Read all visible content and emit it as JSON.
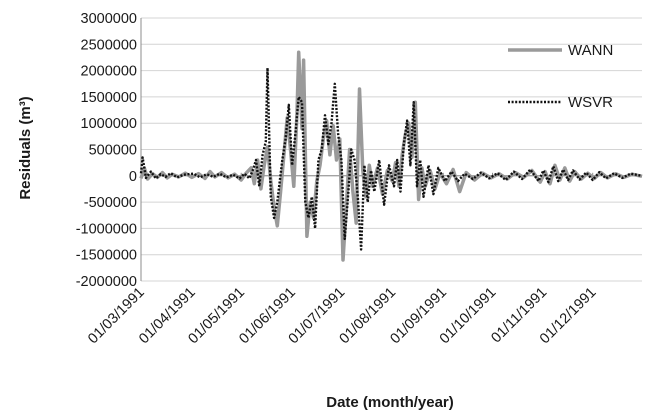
{
  "chart_data": {
    "type": "line",
    "xlabel": "Date (month/year)",
    "ylabel": "Residuals (m³)",
    "ylim": [
      -2000000,
      3000000
    ],
    "yticks": [
      -2000000,
      -1500000,
      -1000000,
      -500000,
      0,
      500000,
      1000000,
      1500000,
      2000000,
      2500000,
      3000000
    ],
    "ytick_labels": [
      "-2000000",
      "-1500000",
      "-1000000",
      "-500000",
      "0",
      "500000",
      "1000000",
      "1500000",
      "2000000",
      "2500000",
      "3000000"
    ],
    "x_range": [
      "1991-03-01",
      "1991-12-31"
    ],
    "xticks": [
      "1991-03-01",
      "1991-04-01",
      "1991-05-01",
      "1991-06-01",
      "1991-07-01",
      "1991-08-01",
      "1991-09-01",
      "1991-10-01",
      "1991-11-01",
      "1991-12-01"
    ],
    "xtick_labels": [
      "01/03/1991",
      "01/04/1991",
      "01/05/1991",
      "01/06/1991",
      "01/07/1991",
      "01/08/1991",
      "01/09/1991",
      "01/10/1991",
      "01/11/1991",
      "01/12/1991"
    ],
    "grid": "horizontal",
    "legend_position": "top-right",
    "series": [
      {
        "name": "WANN",
        "color": "#9a9a9a",
        "style": "solid",
        "points": [
          [
            "1991-03-01",
            -50000
          ],
          [
            "1991-03-03",
            150000
          ],
          [
            "1991-03-05",
            -60000
          ],
          [
            "1991-03-08",
            40000
          ],
          [
            "1991-03-11",
            -30000
          ],
          [
            "1991-03-14",
            60000
          ],
          [
            "1991-03-17",
            -40000
          ],
          [
            "1991-03-20",
            30000
          ],
          [
            "1991-03-24",
            -20000
          ],
          [
            "1991-03-28",
            50000
          ],
          [
            "1991-04-01",
            -30000
          ],
          [
            "1991-04-05",
            40000
          ],
          [
            "1991-04-09",
            -50000
          ],
          [
            "1991-04-12",
            80000
          ],
          [
            "1991-04-15",
            -20000
          ],
          [
            "1991-04-19",
            60000
          ],
          [
            "1991-04-23",
            -40000
          ],
          [
            "1991-04-27",
            30000
          ],
          [
            "1991-05-01",
            -80000
          ],
          [
            "1991-05-04",
            50000
          ],
          [
            "1991-05-07",
            150000
          ],
          [
            "1991-05-09",
            -150000
          ],
          [
            "1991-05-11",
            300000
          ],
          [
            "1991-05-13",
            -250000
          ],
          [
            "1991-05-15",
            200000
          ],
          [
            "1991-05-17",
            550000
          ],
          [
            "1991-05-19",
            -100000
          ],
          [
            "1991-05-21",
            -600000
          ],
          [
            "1991-05-23",
            -950000
          ],
          [
            "1991-05-25",
            -300000
          ],
          [
            "1991-05-27",
            400000
          ],
          [
            "1991-05-29",
            1100000
          ],
          [
            "1991-05-31",
            500000
          ],
          [
            "1991-06-02",
            -200000
          ],
          [
            "1991-06-04",
            1200000
          ],
          [
            "1991-06-05",
            2350000
          ],
          [
            "1991-06-07",
            900000
          ],
          [
            "1991-06-08",
            2200000
          ],
          [
            "1991-06-10",
            -1150000
          ],
          [
            "1991-06-12",
            -500000
          ],
          [
            "1991-06-14",
            -800000
          ],
          [
            "1991-06-16",
            -100000
          ],
          [
            "1991-06-18",
            200000
          ],
          [
            "1991-06-20",
            700000
          ],
          [
            "1991-06-22",
            1050000
          ],
          [
            "1991-06-24",
            400000
          ],
          [
            "1991-06-26",
            950000
          ],
          [
            "1991-06-28",
            300000
          ],
          [
            "1991-06-30",
            700000
          ],
          [
            "1991-07-02",
            -1600000
          ],
          [
            "1991-07-04",
            -600000
          ],
          [
            "1991-07-06",
            500000
          ],
          [
            "1991-07-08",
            -300000
          ],
          [
            "1991-07-10",
            -900000
          ],
          [
            "1991-07-12",
            1650000
          ],
          [
            "1991-07-14",
            100000
          ],
          [
            "1991-07-16",
            -400000
          ],
          [
            "1991-07-18",
            200000
          ],
          [
            "1991-07-20",
            -200000
          ],
          [
            "1991-07-23",
            150000
          ],
          [
            "1991-07-26",
            -350000
          ],
          [
            "1991-07-29",
            100000
          ],
          [
            "1991-08-01",
            -100000
          ],
          [
            "1991-08-03",
            250000
          ],
          [
            "1991-08-05",
            -200000
          ],
          [
            "1991-08-07",
            400000
          ],
          [
            "1991-08-09",
            800000
          ],
          [
            "1991-08-11",
            1000000
          ],
          [
            "1991-08-13",
            350000
          ],
          [
            "1991-08-15",
            1400000
          ],
          [
            "1991-08-17",
            -450000
          ],
          [
            "1991-08-19",
            150000
          ],
          [
            "1991-08-21",
            -200000
          ],
          [
            "1991-08-24",
            100000
          ],
          [
            "1991-08-27",
            -250000
          ],
          [
            "1991-08-30",
            50000
          ],
          [
            "1991-09-03",
            -150000
          ],
          [
            "1991-09-07",
            120000
          ],
          [
            "1991-09-11",
            -300000
          ],
          [
            "1991-09-15",
            60000
          ],
          [
            "1991-09-20",
            -80000
          ],
          [
            "1991-09-25",
            50000
          ],
          [
            "1991-09-30",
            -40000
          ],
          [
            "1991-10-05",
            40000
          ],
          [
            "1991-10-10",
            -60000
          ],
          [
            "1991-10-15",
            60000
          ],
          [
            "1991-10-20",
            -30000
          ],
          [
            "1991-10-25",
            100000
          ],
          [
            "1991-10-30",
            -120000
          ],
          [
            "1991-11-02",
            80000
          ],
          [
            "1991-11-05",
            -150000
          ],
          [
            "1991-11-08",
            200000
          ],
          [
            "1991-11-11",
            -80000
          ],
          [
            "1991-11-14",
            150000
          ],
          [
            "1991-11-17",
            -100000
          ],
          [
            "1991-11-20",
            80000
          ],
          [
            "1991-11-24",
            -60000
          ],
          [
            "1991-11-28",
            50000
          ],
          [
            "1991-12-02",
            -50000
          ],
          [
            "1991-12-06",
            60000
          ],
          [
            "1991-12-10",
            -40000
          ],
          [
            "1991-12-15",
            40000
          ],
          [
            "1991-12-20",
            -30000
          ],
          [
            "1991-12-25",
            30000
          ],
          [
            "1991-12-31",
            -10000
          ]
        ]
      },
      {
        "name": "WSVR",
        "color": "#111111",
        "style": "dotted",
        "points": [
          [
            "1991-03-01",
            50000
          ],
          [
            "1991-03-02",
            350000
          ],
          [
            "1991-03-04",
            -40000
          ],
          [
            "1991-03-07",
            80000
          ],
          [
            "1991-03-10",
            -50000
          ],
          [
            "1991-03-13",
            30000
          ],
          [
            "1991-03-16",
            -20000
          ],
          [
            "1991-03-19",
            50000
          ],
          [
            "1991-03-23",
            -30000
          ],
          [
            "1991-03-27",
            20000
          ],
          [
            "1991-04-02",
            40000
          ],
          [
            "1991-04-06",
            -30000
          ],
          [
            "1991-04-10",
            30000
          ],
          [
            "1991-04-14",
            -20000
          ],
          [
            "1991-04-18",
            40000
          ],
          [
            "1991-04-22",
            -30000
          ],
          [
            "1991-04-26",
            20000
          ],
          [
            "1991-04-30",
            -50000
          ],
          [
            "1991-05-03",
            40000
          ],
          [
            "1991-05-06",
            -50000
          ],
          [
            "1991-05-08",
            100000
          ],
          [
            "1991-05-10",
            300000
          ],
          [
            "1991-05-12",
            -200000
          ],
          [
            "1991-05-14",
            400000
          ],
          [
            "1991-05-16",
            650000
          ],
          [
            "1991-05-17",
            2050000
          ],
          [
            "1991-05-19",
            -400000
          ],
          [
            "1991-05-21",
            -800000
          ],
          [
            "1991-05-23",
            -500000
          ],
          [
            "1991-05-26",
            300000
          ],
          [
            "1991-05-28",
            700000
          ],
          [
            "1991-05-30",
            1350000
          ],
          [
            "1991-06-01",
            200000
          ],
          [
            "1991-06-03",
            800000
          ],
          [
            "1991-06-05",
            1500000
          ],
          [
            "1991-06-07",
            1400000
          ],
          [
            "1991-06-09",
            -500000
          ],
          [
            "1991-06-11",
            -800000
          ],
          [
            "1991-06-13",
            -400000
          ],
          [
            "1991-06-15",
            -1000000
          ],
          [
            "1991-06-17",
            300000
          ],
          [
            "1991-06-19",
            500000
          ],
          [
            "1991-06-21",
            1150000
          ],
          [
            "1991-06-23",
            600000
          ],
          [
            "1991-06-25",
            1000000
          ],
          [
            "1991-06-27",
            1750000
          ],
          [
            "1991-06-29",
            800000
          ],
          [
            "1991-07-01",
            300000
          ],
          [
            "1991-07-03",
            -1200000
          ],
          [
            "1991-07-05",
            -400000
          ],
          [
            "1991-07-07",
            500000
          ],
          [
            "1991-07-09",
            300000
          ],
          [
            "1991-07-11",
            -400000
          ],
          [
            "1991-07-13",
            -1400000
          ],
          [
            "1991-07-15",
            200000
          ],
          [
            "1991-07-17",
            -500000
          ],
          [
            "1991-07-19",
            100000
          ],
          [
            "1991-07-21",
            -300000
          ],
          [
            "1991-07-24",
            300000
          ],
          [
            "1991-07-27",
            -550000
          ],
          [
            "1991-07-30",
            200000
          ],
          [
            "1991-08-02",
            -200000
          ],
          [
            "1991-08-04",
            300000
          ],
          [
            "1991-08-06",
            -300000
          ],
          [
            "1991-08-08",
            600000
          ],
          [
            "1991-08-10",
            1050000
          ],
          [
            "1991-08-12",
            200000
          ],
          [
            "1991-08-14",
            1400000
          ],
          [
            "1991-08-16",
            -200000
          ],
          [
            "1991-08-18",
            300000
          ],
          [
            "1991-08-20",
            -400000
          ],
          [
            "1991-08-23",
            200000
          ],
          [
            "1991-08-26",
            -350000
          ],
          [
            "1991-08-29",
            150000
          ],
          [
            "1991-09-02",
            -100000
          ],
          [
            "1991-09-06",
            80000
          ],
          [
            "1991-09-10",
            -100000
          ],
          [
            "1991-09-14",
            40000
          ],
          [
            "1991-09-19",
            -60000
          ],
          [
            "1991-09-24",
            60000
          ],
          [
            "1991-09-29",
            -50000
          ],
          [
            "1991-10-04",
            50000
          ],
          [
            "1991-10-09",
            -80000
          ],
          [
            "1991-10-14",
            80000
          ],
          [
            "1991-10-19",
            -60000
          ],
          [
            "1991-10-24",
            120000
          ],
          [
            "1991-10-29",
            -100000
          ],
          [
            "1991-11-01",
            100000
          ],
          [
            "1991-11-04",
            -120000
          ],
          [
            "1991-11-07",
            180000
          ],
          [
            "1991-11-10",
            -100000
          ],
          [
            "1991-11-13",
            120000
          ],
          [
            "1991-11-16",
            -80000
          ],
          [
            "1991-11-19",
            100000
          ],
          [
            "1991-11-23",
            -70000
          ],
          [
            "1991-11-27",
            60000
          ],
          [
            "1991-12-01",
            -80000
          ],
          [
            "1991-12-05",
            70000
          ],
          [
            "1991-12-09",
            -50000
          ],
          [
            "1991-12-14",
            50000
          ],
          [
            "1991-12-19",
            -40000
          ],
          [
            "1991-12-24",
            40000
          ],
          [
            "1991-12-31",
            0
          ]
        ]
      }
    ]
  }
}
